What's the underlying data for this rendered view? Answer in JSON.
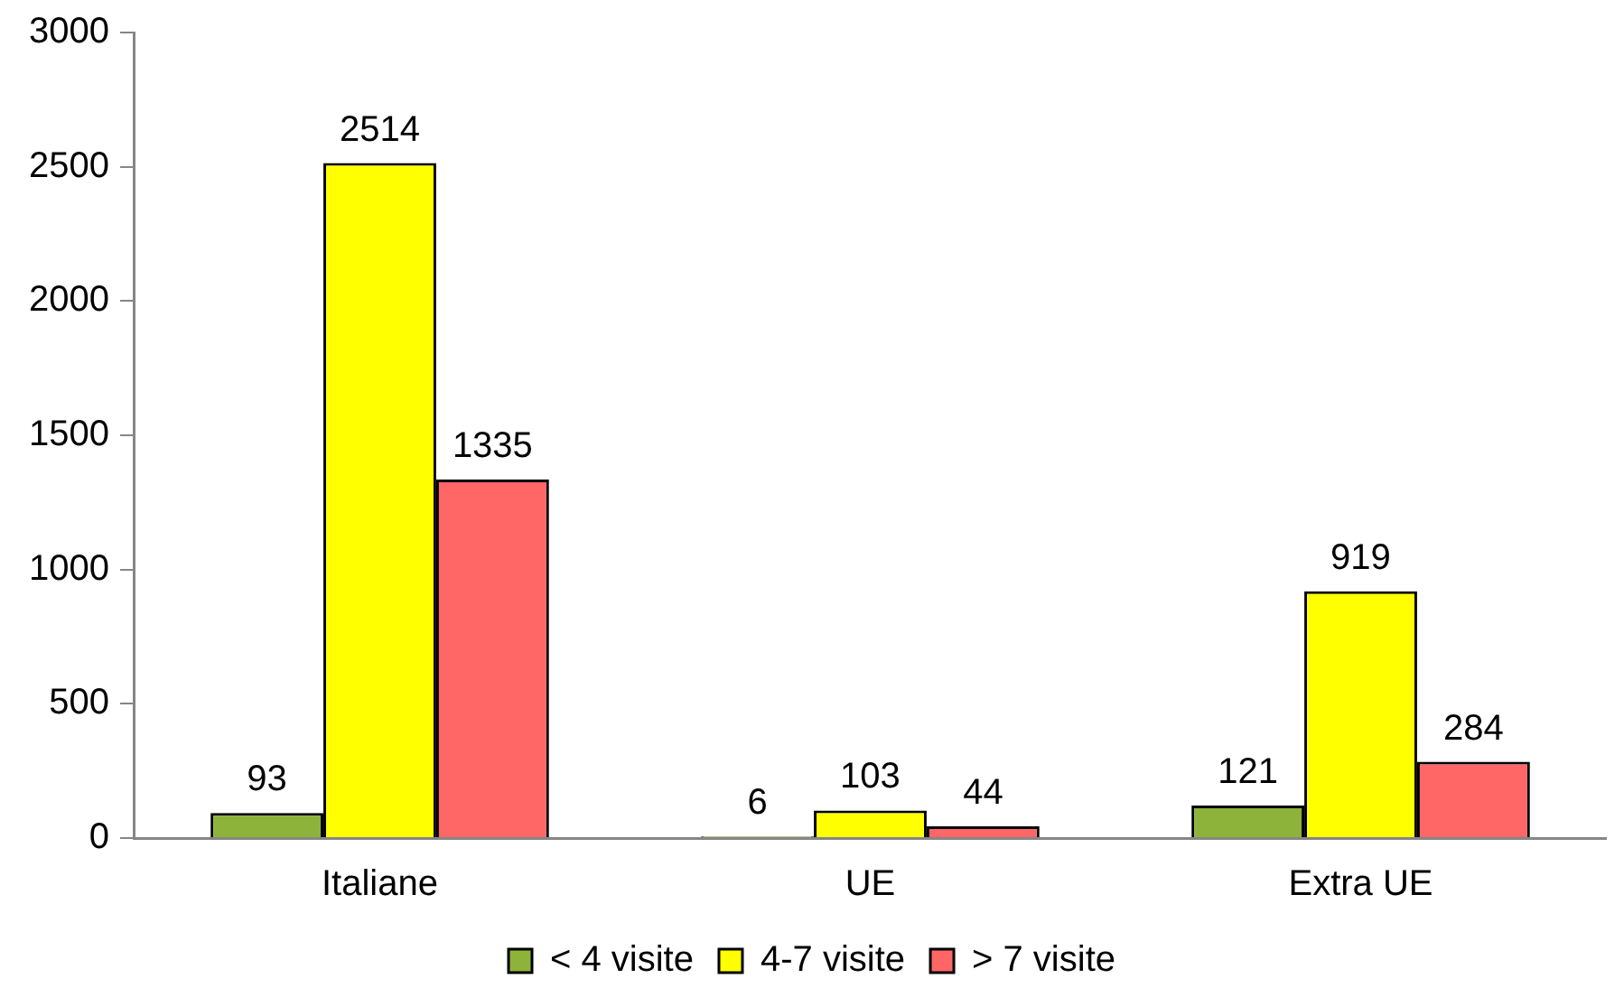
{
  "chart_data": {
    "type": "bar",
    "categories": [
      "Italiane",
      "UE",
      "Extra UE"
    ],
    "series": [
      {
        "name": "< 4 visite",
        "color": "#8db33a",
        "values": [
          93,
          6,
          121
        ]
      },
      {
        "name": "4-7 visite",
        "color": "#ffff00",
        "values": [
          2514,
          103,
          919
        ]
      },
      {
        "name": "> 7 visite",
        "color": "#ff6666",
        "values": [
          1335,
          44,
          284
        ]
      }
    ],
    "ylim": [
      0,
      3000
    ],
    "yticks": [
      0,
      500,
      1000,
      1500,
      2000,
      2500,
      3000
    ],
    "grid": false,
    "legend": "bottom",
    "data_labels": true
  }
}
